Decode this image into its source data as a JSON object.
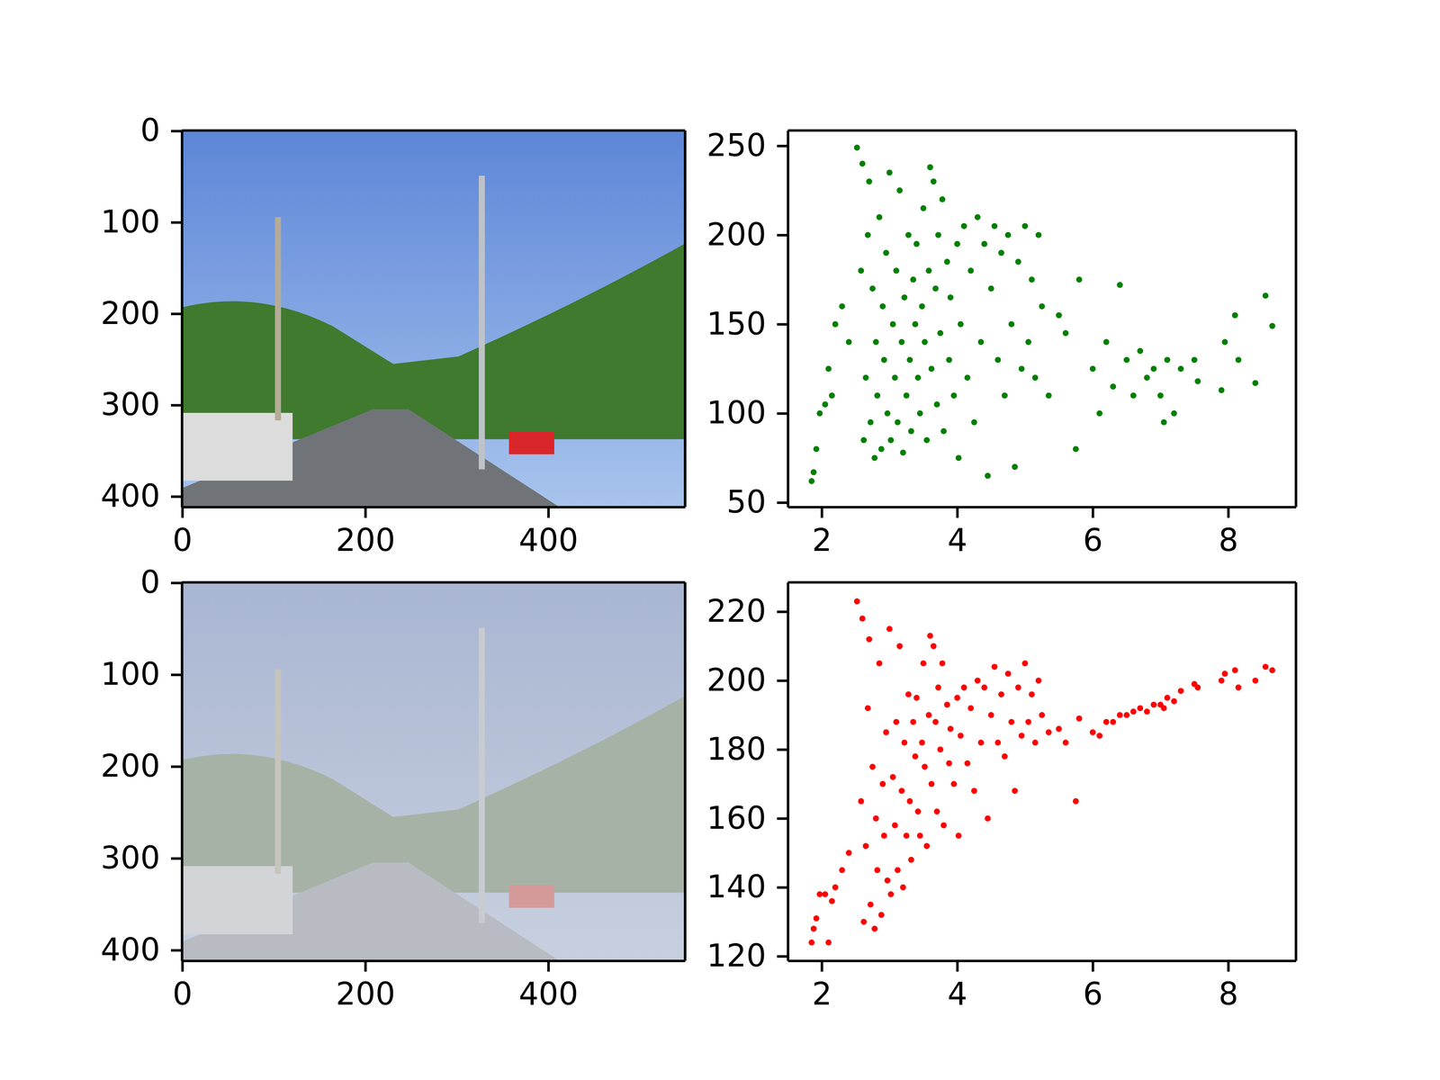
{
  "chart_data": [
    {
      "type": "image",
      "xlim": [
        -0.5,
        549.5
      ],
      "ylim": [
        411.5,
        -0.5
      ],
      "xticks": [
        0,
        200,
        400
      ],
      "yticks": [
        0,
        100,
        200,
        300,
        400
      ]
    },
    {
      "type": "scatter",
      "color": "green",
      "xlim": [
        1.5,
        9.0
      ],
      "ylim": [
        47.5,
        258.6
      ],
      "xticks": [
        2,
        4,
        6,
        8
      ],
      "yticks": [
        50,
        100,
        150,
        200,
        250
      ],
      "x": [
        1.85,
        1.88,
        1.92,
        1.97,
        2.05,
        2.1,
        2.15,
        2.2,
        2.3,
        2.4,
        2.52,
        2.58,
        2.6,
        2.62,
        2.65,
        2.68,
        2.7,
        2.72,
        2.75,
        2.78,
        2.8,
        2.82,
        2.85,
        2.88,
        2.9,
        2.92,
        2.95,
        2.97,
        3.0,
        3.02,
        3.05,
        3.08,
        3.1,
        3.12,
        3.15,
        3.18,
        3.2,
        3.22,
        3.25,
        3.28,
        3.3,
        3.32,
        3.35,
        3.38,
        3.4,
        3.42,
        3.45,
        3.48,
        3.5,
        3.52,
        3.55,
        3.58,
        3.6,
        3.62,
        3.65,
        3.68,
        3.7,
        3.72,
        3.75,
        3.78,
        3.8,
        3.85,
        3.88,
        3.9,
        3.95,
        4.0,
        4.02,
        4.05,
        4.1,
        4.15,
        4.2,
        4.25,
        4.3,
        4.35,
        4.4,
        4.45,
        4.5,
        4.55,
        4.6,
        4.65,
        4.7,
        4.75,
        4.8,
        4.85,
        4.9,
        4.95,
        5.0,
        5.05,
        5.1,
        5.15,
        5.2,
        5.25,
        5.35,
        5.5,
        5.6,
        5.75,
        5.8,
        6.0,
        6.1,
        6.2,
        6.3,
        6.4,
        6.5,
        6.6,
        6.7,
        6.8,
        6.9,
        7.0,
        7.05,
        7.1,
        7.2,
        7.3,
        7.5,
        7.55,
        7.9,
        7.95,
        8.1,
        8.15,
        8.4,
        8.55,
        8.65
      ],
      "y": [
        62,
        67,
        80,
        100,
        105,
        125,
        110,
        150,
        160,
        140,
        249,
        180,
        240,
        85,
        120,
        200,
        230,
        95,
        170,
        75,
        140,
        110,
        210,
        80,
        160,
        130,
        190,
        100,
        235,
        85,
        150,
        120,
        180,
        95,
        225,
        140,
        78,
        165,
        110,
        200,
        130,
        90,
        175,
        150,
        195,
        120,
        100,
        160,
        215,
        140,
        85,
        180,
        238,
        125,
        230,
        170,
        105,
        200,
        145,
        220,
        90,
        185,
        130,
        165,
        110,
        195,
        75,
        150,
        205,
        120,
        180,
        95,
        210,
        140,
        195,
        65,
        170,
        205,
        130,
        190,
        110,
        200,
        150,
        70,
        185,
        125,
        205,
        140,
        175,
        120,
        200,
        160,
        110,
        155,
        145,
        80,
        175,
        125,
        100,
        140,
        115,
        172,
        130,
        110,
        135,
        120,
        125,
        110,
        95,
        130,
        100,
        125,
        130,
        118,
        113,
        140,
        155,
        130,
        117,
        166,
        149
      ]
    },
    {
      "type": "image",
      "xlim": [
        -0.5,
        549.5
      ],
      "ylim": [
        411.5,
        -0.5
      ],
      "xticks": [
        0,
        200,
        400
      ],
      "yticks": [
        0,
        100,
        200,
        300,
        400
      ]
    },
    {
      "type": "scatter",
      "color": "red",
      "xlim": [
        1.5,
        9.0
      ],
      "ylim": [
        118.7,
        228.5
      ],
      "xticks": [
        2,
        4,
        6,
        8
      ],
      "yticks": [
        120,
        140,
        160,
        180,
        200,
        220
      ],
      "x": [
        1.85,
        1.88,
        1.92,
        1.97,
        2.05,
        2.1,
        2.15,
        2.2,
        2.3,
        2.4,
        2.52,
        2.58,
        2.6,
        2.62,
        2.65,
        2.68,
        2.7,
        2.72,
        2.75,
        2.78,
        2.8,
        2.82,
        2.85,
        2.88,
        2.9,
        2.92,
        2.95,
        2.97,
        3.0,
        3.02,
        3.05,
        3.08,
        3.1,
        3.12,
        3.15,
        3.18,
        3.2,
        3.22,
        3.25,
        3.28,
        3.3,
        3.32,
        3.35,
        3.38,
        3.4,
        3.42,
        3.45,
        3.48,
        3.5,
        3.52,
        3.55,
        3.58,
        3.6,
        3.62,
        3.65,
        3.68,
        3.7,
        3.72,
        3.75,
        3.78,
        3.8,
        3.85,
        3.88,
        3.9,
        3.95,
        4.0,
        4.02,
        4.05,
        4.1,
        4.15,
        4.2,
        4.25,
        4.3,
        4.35,
        4.4,
        4.45,
        4.5,
        4.55,
        4.6,
        4.65,
        4.7,
        4.75,
        4.8,
        4.85,
        4.9,
        4.95,
        5.0,
        5.05,
        5.1,
        5.15,
        5.2,
        5.25,
        5.35,
        5.5,
        5.6,
        5.75,
        5.8,
        6.0,
        6.1,
        6.2,
        6.3,
        6.4,
        6.5,
        6.6,
        6.7,
        6.8,
        6.9,
        7.0,
        7.05,
        7.1,
        7.2,
        7.3,
        7.5,
        7.55,
        7.9,
        7.95,
        8.1,
        8.15,
        8.4,
        8.55,
        8.65
      ],
      "y": [
        124,
        128,
        131,
        138,
        138,
        124,
        136,
        140,
        145,
        150,
        223,
        165,
        218,
        130,
        152,
        192,
        212,
        135,
        175,
        128,
        160,
        145,
        205,
        132,
        170,
        155,
        185,
        142,
        215,
        138,
        172,
        158,
        188,
        145,
        210,
        168,
        140,
        182,
        155,
        196,
        165,
        148,
        188,
        178,
        195,
        162,
        155,
        182,
        205,
        175,
        152,
        190,
        213,
        170,
        210,
        188,
        162,
        198,
        180,
        205,
        158,
        193,
        176,
        186,
        170,
        195,
        155,
        184,
        198,
        176,
        192,
        168,
        200,
        182,
        198,
        160,
        190,
        204,
        182,
        196,
        178,
        202,
        188,
        168,
        198,
        184,
        205,
        188,
        196,
        182,
        200,
        190,
        185,
        186,
        182,
        165,
        189,
        185,
        184,
        188,
        188,
        190,
        190,
        191,
        192,
        191,
        193,
        193,
        192,
        195,
        194,
        197,
        199,
        198,
        200,
        202,
        203,
        198,
        200,
        204,
        203
      ]
    }
  ]
}
